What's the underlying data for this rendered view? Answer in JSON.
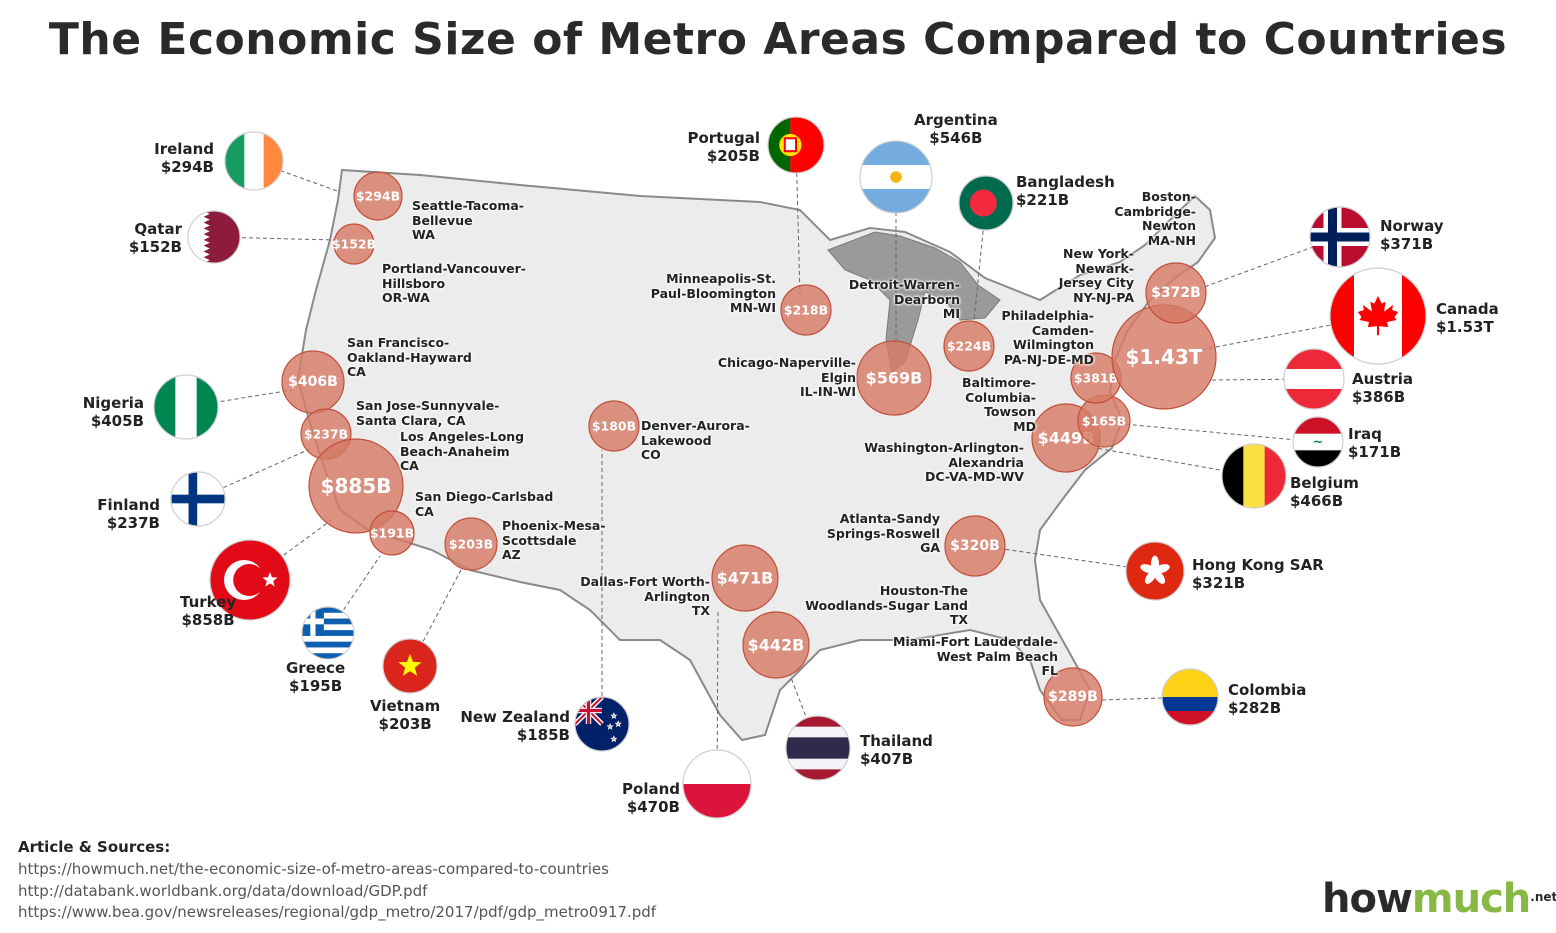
{
  "title": "The Economic Size of Metro Areas Compared to Countries",
  "colors": {
    "bubble_fill": "#d67a66",
    "bubble_stroke": "#c0503a",
    "land": "#ececec",
    "land_stroke": "#888888",
    "logo_green": "#86b843"
  },
  "metros": [
    {
      "id": "seattle",
      "label_lines": [
        "Seattle-Tacoma-",
        "Bellevue",
        "WA"
      ],
      "value": "$294B"
    },
    {
      "id": "portland",
      "label_lines": [
        "Portland-Vancouver-",
        "Hillsboro",
        "OR-WA"
      ],
      "value": "$152B"
    },
    {
      "id": "sanfrancisco",
      "label_lines": [
        "San Francisco-",
        "Oakland-Hayward",
        "CA"
      ],
      "value": "$406B"
    },
    {
      "id": "sanjose",
      "label_lines": [
        "San Jose-Sunnyvale-",
        "Santa Clara, CA"
      ],
      "value": "$237B"
    },
    {
      "id": "losangeles",
      "label_lines": [
        "Los Angeles-Long",
        "Beach-Anaheim",
        "CA"
      ],
      "value": "$885B"
    },
    {
      "id": "sandiego",
      "label_lines": [
        "San Diego-Carlsbad",
        "CA"
      ],
      "value": "$191B"
    },
    {
      "id": "phoenix",
      "label_lines": [
        "Phoenix-Mesa-",
        "Scottsdale",
        "AZ"
      ],
      "value": "$203B"
    },
    {
      "id": "denver",
      "label_lines": [
        "Denver-Aurora-",
        "Lakewood",
        "CO"
      ],
      "value": "$180B"
    },
    {
      "id": "dallas",
      "label_lines": [
        "Dallas-Fort Worth-",
        "Arlington",
        "TX"
      ],
      "value": "$471B"
    },
    {
      "id": "houston",
      "label_lines": [
        "Houston-The",
        "Woodlands-Sugar Land",
        "TX"
      ],
      "value": "$442B"
    },
    {
      "id": "minneapolis",
      "label_lines": [
        "Minneapolis-St.",
        "Paul-Bloomington",
        "MN-WI"
      ],
      "value": "$218B"
    },
    {
      "id": "chicago",
      "label_lines": [
        "Chicago-Naperville-",
        "Elgin",
        "IL-IN-WI"
      ],
      "value": "$569B"
    },
    {
      "id": "detroit",
      "label_lines": [
        "Detroit-Warren-",
        "Dearborn",
        "MI"
      ],
      "value": "$224B"
    },
    {
      "id": "atlanta",
      "label_lines": [
        "Atlanta-Sandy",
        "Springs-Roswell",
        "GA"
      ],
      "value": "$320B"
    },
    {
      "id": "miami",
      "label_lines": [
        "Miami-Fort Lauderdale-",
        "West Palm Beach",
        "FL"
      ],
      "value": "$289B"
    },
    {
      "id": "washington",
      "label_lines": [
        "Washington-Arlington-",
        "Alexandria",
        "DC-VA-MD-WV"
      ],
      "value": "$449B"
    },
    {
      "id": "baltimore",
      "label_lines": [
        "Baltimore-",
        "Columbia-",
        "Towson",
        "MD"
      ],
      "value": "$165B"
    },
    {
      "id": "philadelphia",
      "label_lines": [
        "Philadelphia-",
        "Camden-",
        "Wilmington",
        "PA-NJ-DE-MD"
      ],
      "value": "$381B"
    },
    {
      "id": "newyork",
      "label_lines": [
        "New York-",
        "Newark-",
        "Jersey City",
        "NY-NJ-PA"
      ],
      "value": "$1.43T"
    },
    {
      "id": "boston",
      "label_lines": [
        "Boston-",
        "Cambridge-",
        "Newton",
        "MA-NH"
      ],
      "value": "$372B"
    }
  ],
  "countries": [
    {
      "id": "ireland",
      "name": "Ireland",
      "value": "$294B",
      "flag": "ireland-flag-icon"
    },
    {
      "id": "qatar",
      "name": "Qatar",
      "value": "$152B",
      "flag": "qatar-flag-icon"
    },
    {
      "id": "nigeria",
      "name": "Nigeria",
      "value": "$405B",
      "flag": "nigeria-flag-icon"
    },
    {
      "id": "finland",
      "name": "Finland",
      "value": "$237B",
      "flag": "finland-flag-icon"
    },
    {
      "id": "turkey",
      "name": "Turkey",
      "value": "$858B",
      "flag": "turkey-flag-icon"
    },
    {
      "id": "greece",
      "name": "Greece",
      "value": "$195B",
      "flag": "greece-flag-icon"
    },
    {
      "id": "vietnam",
      "name": "Vietnam",
      "value": "$203B",
      "flag": "vietnam-flag-icon"
    },
    {
      "id": "newzealand",
      "name": "New  Zealand",
      "value": "$185B",
      "flag": "new-zealand-flag-icon"
    },
    {
      "id": "poland",
      "name": "Poland",
      "value": "$470B",
      "flag": "poland-flag-icon"
    },
    {
      "id": "thailand",
      "name": "Thailand",
      "value": "$407B",
      "flag": "thailand-flag-icon"
    },
    {
      "id": "portugal",
      "name": "Portugal",
      "value": "$205B",
      "flag": "portugal-flag-icon"
    },
    {
      "id": "argentina",
      "name": "Argentina",
      "value": "$546B",
      "flag": "argentina-flag-icon"
    },
    {
      "id": "bangladesh",
      "name": "Bangladesh",
      "value": "$221B",
      "flag": "bangladesh-flag-icon"
    },
    {
      "id": "norway",
      "name": "Norway",
      "value": "$371B",
      "flag": "norway-flag-icon"
    },
    {
      "id": "canada",
      "name": "Canada",
      "value": "$1.53T",
      "flag": "canada-flag-icon"
    },
    {
      "id": "austria",
      "name": "Austria",
      "value": "$386B",
      "flag": "austria-flag-icon"
    },
    {
      "id": "iraq",
      "name": "Iraq",
      "value": "$171B",
      "flag": "iraq-flag-icon"
    },
    {
      "id": "belgium",
      "name": "Belgium",
      "value": "$466B",
      "flag": "belgium-flag-icon"
    },
    {
      "id": "hongkong",
      "name": "Hong Kong SAR",
      "value": "$321B",
      "flag": "hong-kong-flag-icon"
    },
    {
      "id": "colombia",
      "name": "Colombia",
      "value": "$282B",
      "flag": "colombia-flag-icon"
    }
  ],
  "sources": {
    "heading": "Article & Sources:",
    "links": [
      "https://howmuch.net/the-economic-size-of-metro-areas-compared-to-countries",
      "http://databank.worldbank.org/data/download/GDP.pdf",
      "https://www.bea.gov/newsreleases/regional/gdp_metro/2017/pdf/gdp_metro0917.pdf"
    ]
  },
  "logo": {
    "part1": "how",
    "part2": "much",
    "suffix": ".net"
  }
}
